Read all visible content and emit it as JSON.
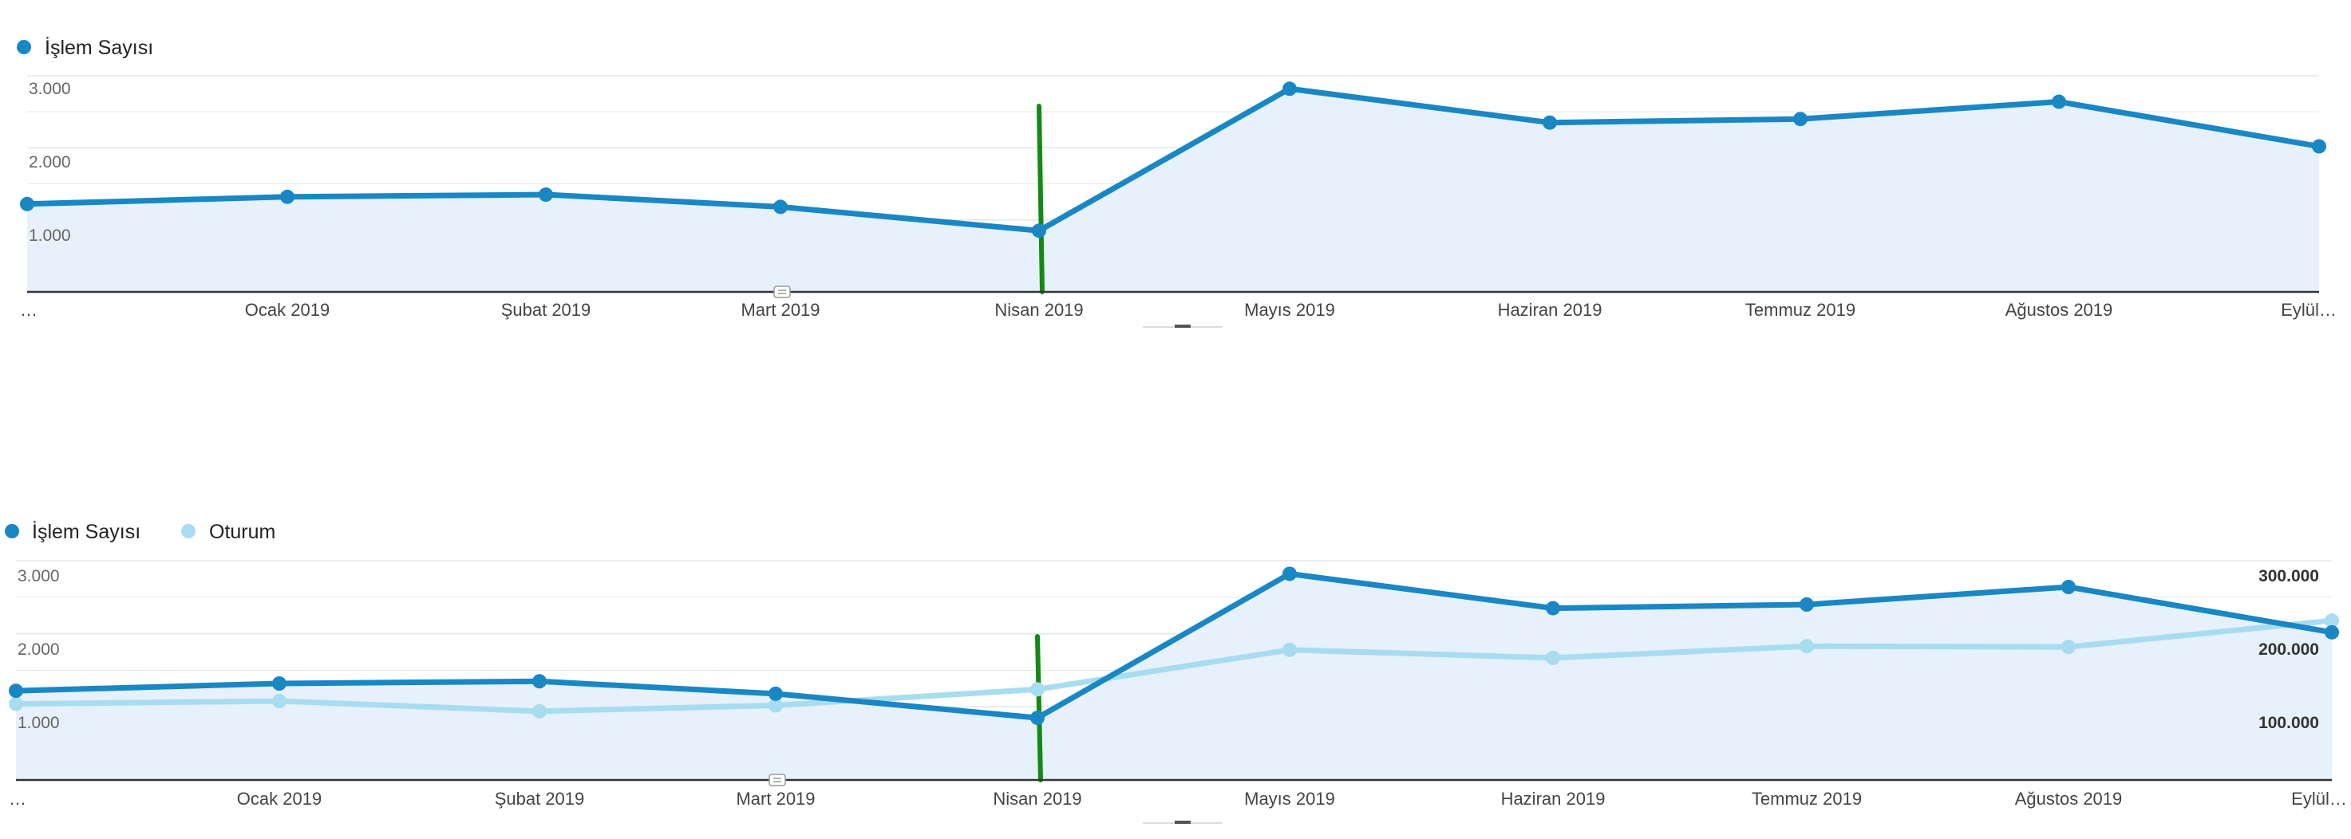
{
  "colors": {
    "primary_series": "#1a87c5",
    "secondary_series": "#a8dcf0",
    "area_fill": "#e6f1fb",
    "annotation_line": "#138a13",
    "gridline": "#e6e6e6",
    "axis": "#333333"
  },
  "chart_data": [
    {
      "type": "area",
      "legend": [
        "İşlem Sayısı"
      ],
      "x_ticks": [
        "…",
        "Ocak 2019",
        "Şubat 2019",
        "Mart 2019",
        "Nisan 2019",
        "Mayıs 2019",
        "Haziran 2019",
        "Temmuz 2019",
        "Ağustos 2019",
        "Eylül…"
      ],
      "y_ticks": [
        "1.000",
        "2.000",
        "3.000"
      ],
      "ylim": [
        0,
        3000
      ],
      "series": [
        {
          "name": "İşlem Sayısı",
          "axis": "left",
          "values": [
            1220,
            1320,
            1350,
            1180,
            850,
            2820,
            2350,
            2400,
            2640,
            2020
          ]
        }
      ],
      "annotation": {
        "type": "vertical-line",
        "category": "Nisan 2019"
      },
      "grid": true
    },
    {
      "type": "area",
      "legend": [
        "İşlem Sayısı",
        "Oturum"
      ],
      "x_ticks": [
        "…",
        "Ocak 2019",
        "Şubat 2019",
        "Mart 2019",
        "Nisan 2019",
        "Mayıs 2019",
        "Haziran 2019",
        "Temmuz 2019",
        "Ağustos 2019",
        "Eylül…"
      ],
      "y_ticks": [
        "1.000",
        "2.000",
        "3.000"
      ],
      "y_ticks_right": [
        "100.000",
        "200.000",
        "300.000"
      ],
      "ylim": [
        0,
        3000
      ],
      "ylim_right": [
        0,
        300000
      ],
      "series": [
        {
          "name": "İşlem Sayısı",
          "axis": "left",
          "values": [
            1220,
            1320,
            1350,
            1180,
            850,
            2820,
            2350,
            2400,
            2640,
            2020
          ]
        },
        {
          "name": "Oturum",
          "axis": "right",
          "values": [
            104000,
            108000,
            94000,
            102000,
            124000,
            178000,
            167000,
            183000,
            182000,
            218000
          ]
        }
      ],
      "annotation": {
        "type": "vertical-line",
        "category": "Nisan 2019"
      },
      "grid": true
    }
  ]
}
